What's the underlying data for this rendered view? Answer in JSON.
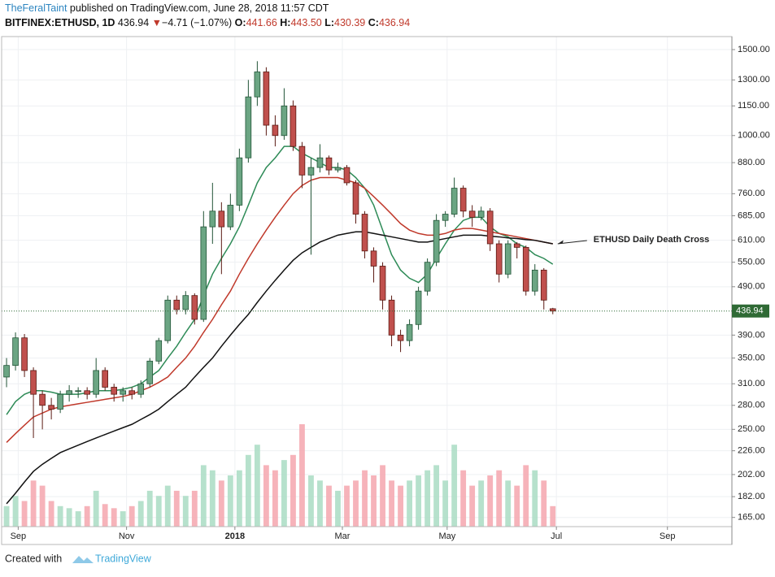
{
  "header": {
    "author": "TheFeralTaint",
    "published": "published on TradingView.com, June 28, 2018 11:57 CDT",
    "symbol": "BITFINEX:ETHUSD, 1D",
    "price": "436.94",
    "arrow": "▼",
    "change": "−4.71 (−1.07%)",
    "o_label": "O:",
    "o": "441.66",
    "h_label": "H:",
    "h": "443.50",
    "l_label": "L:",
    "l": "430.39",
    "c_label": "C:",
    "c": "436.94"
  },
  "footer": {
    "created": "Created with",
    "brand": "TradingView"
  },
  "chart_data": {
    "type": "candlestick",
    "log_scale": true,
    "grid": true,
    "annotation": "ETHUSD Daily Death Cross",
    "up_color": "#6ba583",
    "down_color": "#c0504d",
    "up_border": "#225437",
    "down_border": "#5b1a13",
    "x": [
      0,
      1,
      2,
      3,
      4,
      5,
      6,
      7,
      8,
      9,
      10,
      11,
      12,
      13,
      14,
      15,
      16,
      17,
      18,
      19,
      20,
      21,
      22,
      23,
      24,
      25,
      26,
      27,
      28,
      29,
      30,
      31,
      32,
      33,
      34,
      35,
      36,
      37,
      38,
      39,
      40,
      41,
      42,
      43,
      44,
      45,
      46,
      47,
      48,
      49,
      50,
      51,
      52,
      53,
      54,
      55,
      56,
      57,
      58,
      59,
      60,
      61
    ],
    "open": [
      320,
      338,
      385,
      330,
      295,
      280,
      275,
      295,
      300,
      300,
      295,
      330,
      305,
      295,
      300,
      295,
      310,
      345,
      380,
      460,
      440,
      470,
      420,
      650,
      700,
      650,
      720,
      900,
      1200,
      1350,
      1050,
      1000,
      1150,
      950,
      830,
      860,
      900,
      850,
      860,
      800,
      690,
      580,
      540,
      460,
      390,
      380,
      410,
      480,
      550,
      670,
      690,
      780,
      700,
      680,
      700,
      600,
      520,
      600,
      590,
      480,
      530,
      441.66
    ],
    "high": [
      350,
      395,
      392,
      335,
      300,
      290,
      300,
      308,
      305,
      305,
      350,
      335,
      310,
      305,
      305,
      315,
      350,
      385,
      470,
      470,
      480,
      475,
      700,
      800,
      730,
      760,
      940,
      1300,
      1420,
      1380,
      1100,
      1250,
      1180,
      970,
      900,
      960,
      910,
      880,
      870,
      810,
      700,
      590,
      550,
      470,
      400,
      420,
      490,
      560,
      690,
      700,
      820,
      790,
      720,
      715,
      710,
      610,
      610,
      605,
      595,
      545,
      535,
      443.5
    ],
    "low": [
      305,
      330,
      320,
      240,
      250,
      262,
      270,
      285,
      290,
      288,
      290,
      300,
      285,
      285,
      288,
      290,
      305,
      340,
      375,
      430,
      430,
      410,
      415,
      600,
      520,
      640,
      700,
      880,
      1150,
      1000,
      950,
      980,
      930,
      780,
      570,
      840,
      830,
      840,
      790,
      660,
      560,
      500,
      440,
      370,
      360,
      370,
      400,
      470,
      540,
      650,
      680,
      680,
      650,
      670,
      580,
      500,
      510,
      560,
      470,
      470,
      440,
      430.39
    ],
    "close": [
      338,
      385,
      330,
      295,
      280,
      275,
      295,
      300,
      300,
      295,
      330,
      305,
      295,
      300,
      295,
      310,
      345,
      380,
      460,
      440,
      470,
      420,
      650,
      700,
      650,
      720,
      900,
      1200,
      1350,
      1050,
      1000,
      1150,
      950,
      830,
      860,
      900,
      850,
      860,
      800,
      690,
      580,
      540,
      460,
      390,
      380,
      410,
      480,
      550,
      670,
      690,
      780,
      700,
      680,
      700,
      600,
      520,
      600,
      590,
      480,
      530,
      460,
      436.94
    ],
    "volume": [
      20,
      30,
      25,
      45,
      40,
      25,
      20,
      18,
      15,
      20,
      35,
      22,
      18,
      15,
      20,
      25,
      35,
      30,
      40,
      35,
      30,
      35,
      60,
      55,
      45,
      50,
      55,
      70,
      80,
      60,
      55,
      65,
      70,
      100,
      50,
      45,
      40,
      35,
      40,
      45,
      55,
      50,
      60,
      45,
      40,
      45,
      50,
      55,
      60,
      45,
      80,
      55,
      40,
      45,
      50,
      55,
      45,
      40,
      60,
      55,
      45,
      20
    ],
    "lines": [
      {
        "color": "#2e8b57",
        "values": [
          268,
          285,
          295,
          300,
          300,
          298,
          295,
          295,
          295,
          297,
          300,
          300,
          300,
          302,
          305,
          310,
          320,
          330,
          350,
          370,
          395,
          420,
          470,
          520,
          560,
          600,
          650,
          720,
          800,
          860,
          900,
          950,
          950,
          920,
          900,
          880,
          860,
          860,
          850,
          820,
          780,
          720,
          640,
          570,
          530,
          510,
          500,
          520,
          560,
          600,
          640,
          670,
          680,
          680,
          650,
          630,
          620,
          600,
          590,
          570,
          560,
          545
        ]
      },
      {
        "color": "#c0392b",
        "values": [
          235,
          245,
          255,
          265,
          270,
          275,
          278,
          280,
          282,
          284,
          286,
          288,
          290,
          292,
          295,
          300,
          305,
          312,
          320,
          335,
          350,
          370,
          395,
          420,
          450,
          480,
          520,
          560,
          600,
          640,
          680,
          720,
          760,
          790,
          810,
          820,
          820,
          820,
          810,
          800,
          780,
          750,
          720,
          690,
          660,
          640,
          630,
          625,
          625,
          630,
          640,
          645,
          645,
          640,
          635,
          630,
          625,
          620,
          615,
          610,
          605,
          600
        ]
      },
      {
        "color": "#111111",
        "values": [
          176,
          185,
          195,
          205,
          212,
          218,
          224,
          228,
          232,
          236,
          240,
          244,
          248,
          252,
          256,
          262,
          268,
          275,
          285,
          295,
          305,
          320,
          335,
          350,
          370,
          390,
          410,
          430,
          455,
          480,
          505,
          530,
          555,
          575,
          590,
          605,
          615,
          625,
          630,
          635,
          635,
          630,
          625,
          620,
          615,
          610,
          605,
          605,
          610,
          615,
          620,
          625,
          625,
          625,
          622,
          620,
          617,
          615,
          612,
          610,
          605,
          600
        ]
      }
    ],
    "ylim": [
      158,
      1595
    ],
    "yticks": [
      {
        "value": 1500,
        "label": "1500.00"
      },
      {
        "value": 1300,
        "label": "1300.00"
      },
      {
        "value": 1150,
        "label": "1150.00"
      },
      {
        "value": 1000,
        "label": "1000.00"
      },
      {
        "value": 880,
        "label": "880.00"
      },
      {
        "value": 760,
        "label": "760.00"
      },
      {
        "value": 685,
        "label": "685.00"
      },
      {
        "value": 610,
        "label": "610.00"
      },
      {
        "value": 550,
        "label": "550.00"
      },
      {
        "value": 490,
        "label": "490.00"
      },
      {
        "value": 390,
        "label": "390.00"
      },
      {
        "value": 350,
        "label": "350.00"
      },
      {
        "value": 310,
        "label": "310.00"
      },
      {
        "value": 280,
        "label": "280.00"
      },
      {
        "value": 250,
        "label": "250.00"
      },
      {
        "value": 226,
        "label": "226.00"
      },
      {
        "value": 202,
        "label": "202.00"
      },
      {
        "value": 182,
        "label": "182.00"
      },
      {
        "value": 165,
        "label": "165.00"
      }
    ],
    "xlim": [
      -0.55,
      81
    ],
    "xticks": [
      {
        "value": 1.3,
        "label": "Sep"
      },
      {
        "value": 13.4,
        "label": "Nov"
      },
      {
        "value": 25.5,
        "label": "2018"
      },
      {
        "value": 37.5,
        "label": "Mar"
      },
      {
        "value": 49.2,
        "label": "May"
      },
      {
        "value": 61.4,
        "label": "Jul"
      },
      {
        "value": 73.8,
        "label": "Sep"
      }
    ]
  }
}
